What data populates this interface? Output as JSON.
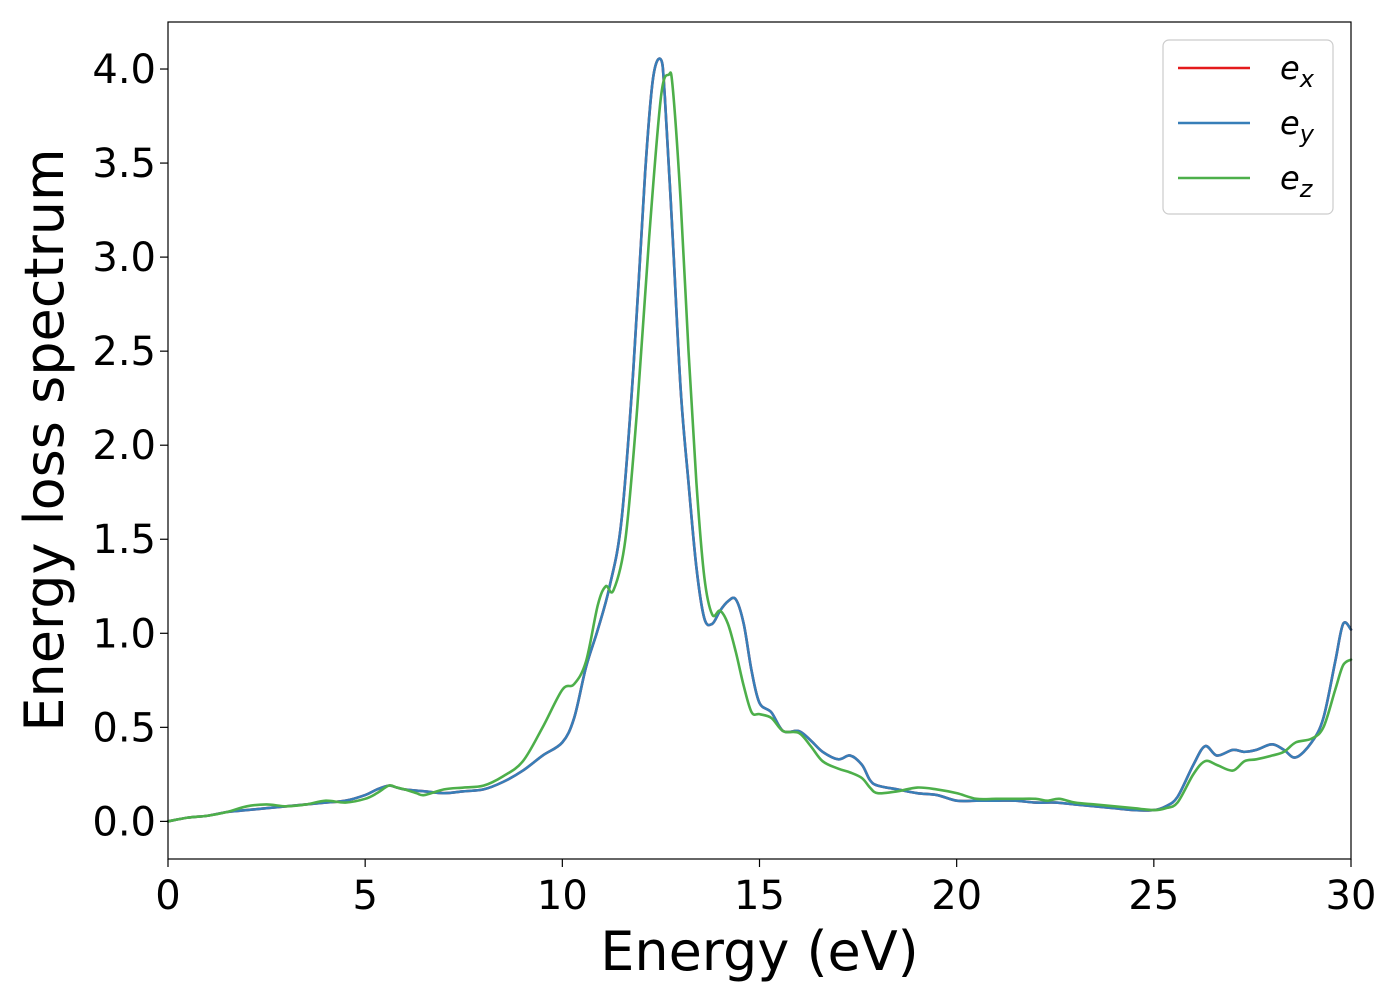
{
  "chart_data": {
    "type": "line",
    "title": "",
    "xlabel": "Energy (eV)",
    "ylabel": "Energy loss spectrum",
    "xlim": [
      0,
      30
    ],
    "ylim": [
      -0.2,
      4.25
    ],
    "xticks": [
      0,
      5,
      10,
      15,
      20,
      25,
      30
    ],
    "xtick_labels": [
      "0",
      "5",
      "10",
      "15",
      "20",
      "25",
      "30"
    ],
    "yticks": [
      0.0,
      0.5,
      1.0,
      1.5,
      2.0,
      2.5,
      3.0,
      3.5,
      4.0
    ],
    "ytick_labels": [
      "0.0",
      "0.5",
      "1.0",
      "1.5",
      "2.0",
      "2.5",
      "3.0",
      "3.5",
      "4.0"
    ],
    "grid": false,
    "legend": {
      "position": "top-right"
    },
    "series": [
      {
        "name": "e_x",
        "label_base": "e",
        "label_sub": "x",
        "color": "#e41a1c",
        "x": [
          0,
          0.5,
          1,
          1.5,
          2,
          2.5,
          3,
          3.5,
          4,
          4.5,
          5,
          5.3,
          5.6,
          5.8,
          6,
          6.5,
          7,
          7.5,
          8,
          8.5,
          9,
          9.5,
          10,
          10.3,
          10.6,
          10.9,
          11.2,
          11.5,
          11.8,
          12.1,
          12.3,
          12.5,
          12.6,
          12.8,
          13,
          13.2,
          13.4,
          13.6,
          13.8,
          14,
          14.2,
          14.4,
          14.6,
          14.8,
          15,
          15.3,
          15.6,
          16,
          16.3,
          16.6,
          17,
          17.3,
          17.6,
          17.8,
          18,
          18.5,
          19,
          19.5,
          20,
          20.5,
          21,
          21.5,
          22,
          22.5,
          23,
          23.5,
          24,
          24.5,
          25,
          25.3,
          25.6,
          26,
          26.3,
          26.6,
          27,
          27.3,
          27.6,
          28,
          28.3,
          28.6,
          29,
          29.3,
          29.6,
          29.8,
          30
        ],
        "y": [
          0,
          0.02,
          0.03,
          0.05,
          0.06,
          0.07,
          0.08,
          0.09,
          0.1,
          0.11,
          0.14,
          0.17,
          0.19,
          0.18,
          0.17,
          0.16,
          0.15,
          0.16,
          0.17,
          0.21,
          0.27,
          0.35,
          0.42,
          0.55,
          0.82,
          1.02,
          1.25,
          1.6,
          2.4,
          3.45,
          3.95,
          4.05,
          3.85,
          3.1,
          2.3,
          1.8,
          1.35,
          1.08,
          1.05,
          1.12,
          1.17,
          1.18,
          1.05,
          0.8,
          0.63,
          0.58,
          0.48,
          0.48,
          0.43,
          0.37,
          0.33,
          0.35,
          0.3,
          0.22,
          0.19,
          0.17,
          0.15,
          0.14,
          0.11,
          0.11,
          0.11,
          0.11,
          0.1,
          0.1,
          0.09,
          0.08,
          0.07,
          0.06,
          0.06,
          0.08,
          0.13,
          0.3,
          0.4,
          0.35,
          0.38,
          0.37,
          0.38,
          0.41,
          0.38,
          0.34,
          0.42,
          0.55,
          0.85,
          1.05,
          1.02
        ]
      },
      {
        "name": "e_y",
        "label_base": "e",
        "label_sub": "y",
        "color": "#377eb8",
        "x": [
          0,
          0.5,
          1,
          1.5,
          2,
          2.5,
          3,
          3.5,
          4,
          4.5,
          5,
          5.3,
          5.6,
          5.8,
          6,
          6.5,
          7,
          7.5,
          8,
          8.5,
          9,
          9.5,
          10,
          10.3,
          10.6,
          10.9,
          11.2,
          11.5,
          11.8,
          12.1,
          12.3,
          12.5,
          12.6,
          12.8,
          13,
          13.2,
          13.4,
          13.6,
          13.8,
          14,
          14.2,
          14.4,
          14.6,
          14.8,
          15,
          15.3,
          15.6,
          16,
          16.3,
          16.6,
          17,
          17.3,
          17.6,
          17.8,
          18,
          18.5,
          19,
          19.5,
          20,
          20.5,
          21,
          21.5,
          22,
          22.5,
          23,
          23.5,
          24,
          24.5,
          25,
          25.3,
          25.6,
          26,
          26.3,
          26.6,
          27,
          27.3,
          27.6,
          28,
          28.3,
          28.6,
          29,
          29.3,
          29.6,
          29.8,
          30
        ],
        "y": [
          0,
          0.02,
          0.03,
          0.05,
          0.06,
          0.07,
          0.08,
          0.09,
          0.1,
          0.11,
          0.14,
          0.17,
          0.19,
          0.18,
          0.17,
          0.16,
          0.15,
          0.16,
          0.17,
          0.21,
          0.27,
          0.35,
          0.42,
          0.55,
          0.82,
          1.02,
          1.25,
          1.6,
          2.4,
          3.45,
          3.95,
          4.05,
          3.85,
          3.1,
          2.3,
          1.8,
          1.35,
          1.08,
          1.05,
          1.12,
          1.17,
          1.18,
          1.05,
          0.8,
          0.63,
          0.58,
          0.48,
          0.48,
          0.43,
          0.37,
          0.33,
          0.35,
          0.3,
          0.22,
          0.19,
          0.17,
          0.15,
          0.14,
          0.11,
          0.11,
          0.11,
          0.11,
          0.1,
          0.1,
          0.09,
          0.08,
          0.07,
          0.06,
          0.06,
          0.08,
          0.13,
          0.3,
          0.4,
          0.35,
          0.38,
          0.37,
          0.38,
          0.41,
          0.38,
          0.34,
          0.42,
          0.55,
          0.85,
          1.05,
          1.02
        ]
      },
      {
        "name": "e_z",
        "label_base": "e",
        "label_sub": "z",
        "color": "#4daf4a",
        "x": [
          0,
          0.5,
          1,
          1.5,
          2,
          2.5,
          3,
          3.5,
          4,
          4.5,
          5,
          5.3,
          5.6,
          5.8,
          6,
          6.3,
          6.5,
          7,
          7.5,
          8,
          8.5,
          9,
          9.5,
          10,
          10.3,
          10.6,
          10.9,
          11.1,
          11.3,
          11.6,
          11.9,
          12.2,
          12.5,
          12.7,
          12.8,
          13,
          13.2,
          13.4,
          13.6,
          13.8,
          14,
          14.2,
          14.4,
          14.6,
          14.8,
          15,
          15.3,
          15.6,
          16,
          16.3,
          16.6,
          17,
          17.3,
          17.6,
          17.8,
          18,
          18.5,
          19,
          19.5,
          20,
          20.5,
          21,
          21.5,
          22,
          22.3,
          22.6,
          23,
          23.5,
          24,
          24.5,
          25,
          25.3,
          25.6,
          26,
          26.3,
          26.6,
          27,
          27.3,
          27.6,
          28,
          28.3,
          28.6,
          29,
          29.3,
          29.6,
          29.8,
          30
        ],
        "y": [
          0,
          0.02,
          0.03,
          0.05,
          0.08,
          0.09,
          0.08,
          0.09,
          0.11,
          0.1,
          0.12,
          0.15,
          0.19,
          0.18,
          0.17,
          0.15,
          0.14,
          0.17,
          0.18,
          0.19,
          0.24,
          0.32,
          0.5,
          0.7,
          0.73,
          0.85,
          1.15,
          1.25,
          1.23,
          1.5,
          2.2,
          3.1,
          3.85,
          3.97,
          3.9,
          3.3,
          2.5,
          1.8,
          1.3,
          1.1,
          1.12,
          1.05,
          0.9,
          0.72,
          0.58,
          0.57,
          0.55,
          0.48,
          0.47,
          0.4,
          0.32,
          0.28,
          0.26,
          0.23,
          0.18,
          0.15,
          0.16,
          0.18,
          0.17,
          0.15,
          0.12,
          0.12,
          0.12,
          0.12,
          0.11,
          0.12,
          0.1,
          0.09,
          0.08,
          0.07,
          0.06,
          0.07,
          0.1,
          0.25,
          0.32,
          0.3,
          0.27,
          0.32,
          0.33,
          0.35,
          0.37,
          0.42,
          0.44,
          0.5,
          0.7,
          0.83,
          0.86
        ]
      }
    ]
  }
}
